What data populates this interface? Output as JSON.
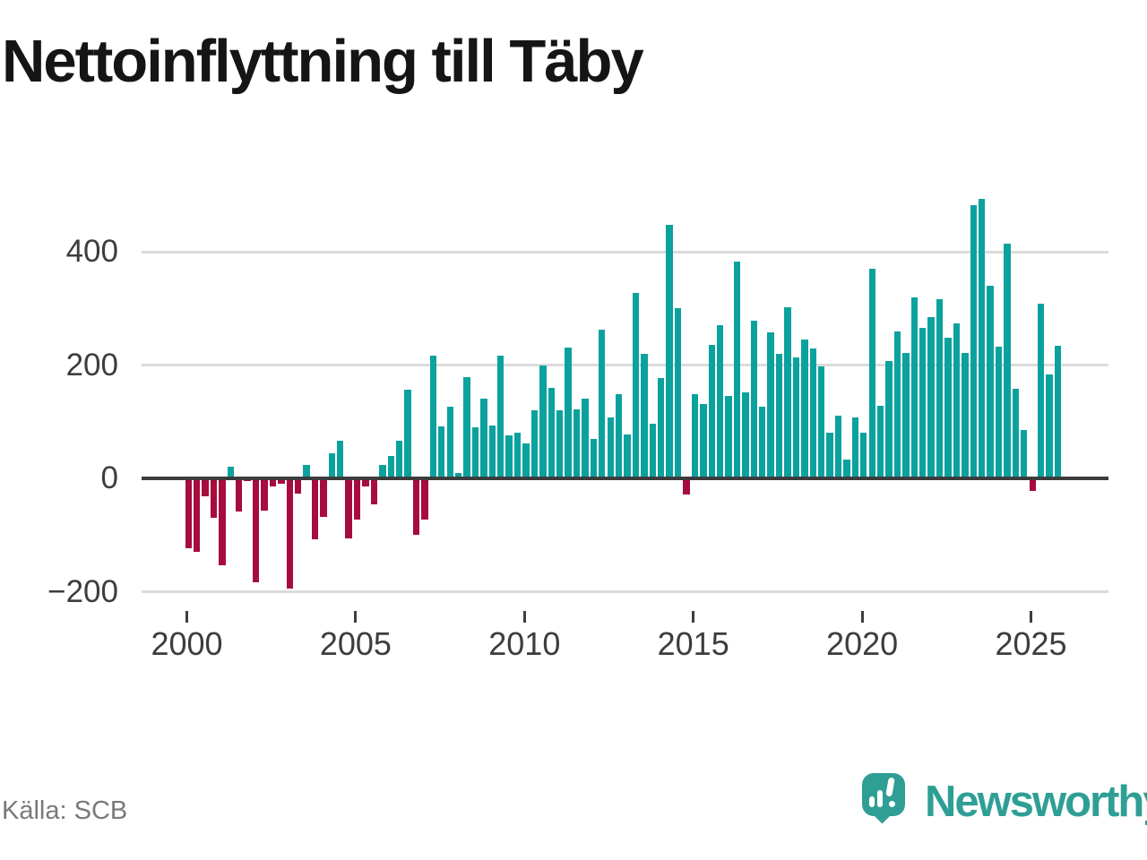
{
  "title": "Nettoinflyttning till Täby",
  "source": "Källa: SCB",
  "logo": {
    "text": "Newsworthy",
    "icon": "newsworthy-pin-bar-chart-icon"
  },
  "colors": {
    "positive_bar": "#0ba29e",
    "negative_bar": "#a60c3e",
    "brand_teal": "#2f9f95",
    "gridline": "#dbdbdb",
    "zero_line": "#3c3c3c",
    "axis_text": "#3d3d3d",
    "title_text": "#151515",
    "source_text": "#7a7a7a",
    "background": "#ffffff"
  },
  "chart_data": {
    "type": "bar",
    "title": "Nettoinflyttning till Täby",
    "xlabel": "",
    "ylabel": "",
    "frequency": "quarterly",
    "start_year": 2000,
    "end_year": 2025,
    "n_bars": 104,
    "values": [
      -123,
      -130,
      -31,
      -69,
      -154,
      20,
      -58,
      -5,
      -183,
      -57,
      -14,
      -9,
      -195,
      -27,
      24,
      -107,
      -68,
      44,
      66,
      -106,
      -72,
      -14,
      -46,
      23,
      40,
      66,
      156,
      -100,
      -72,
      217,
      92,
      126,
      9,
      178,
      90,
      140,
      93,
      217,
      76,
      80,
      62,
      120,
      200,
      160,
      120,
      231,
      121,
      140,
      70,
      263,
      107,
      149,
      77,
      328,
      220,
      96,
      177,
      447,
      301,
      -28,
      148,
      132,
      235,
      271,
      145,
      383,
      151,
      279,
      127,
      258,
      219,
      302,
      214,
      245,
      230,
      197,
      81,
      111,
      33,
      108,
      81,
      370,
      128,
      207,
      260,
      221,
      320,
      265,
      284,
      316,
      249,
      274,
      221,
      482,
      494,
      340,
      232,
      414,
      158,
      85,
      -22,
      309,
      184,
      234
    ],
    "y_ticks": [
      400,
      200,
      0,
      -200
    ],
    "y_tick_labels": [
      "400",
      "200",
      "0",
      "−200"
    ],
    "x_tick_years": [
      2000,
      2005,
      2010,
      2015,
      2020,
      2025
    ],
    "x_tick_labels": [
      "2000",
      "2005",
      "2010",
      "2015",
      "2020",
      "2025"
    ],
    "ylim": [
      -250,
      520
    ],
    "grid": "horizontal",
    "legend": "none",
    "bar_color_rule": "teal for positive values, crimson for negative values"
  }
}
